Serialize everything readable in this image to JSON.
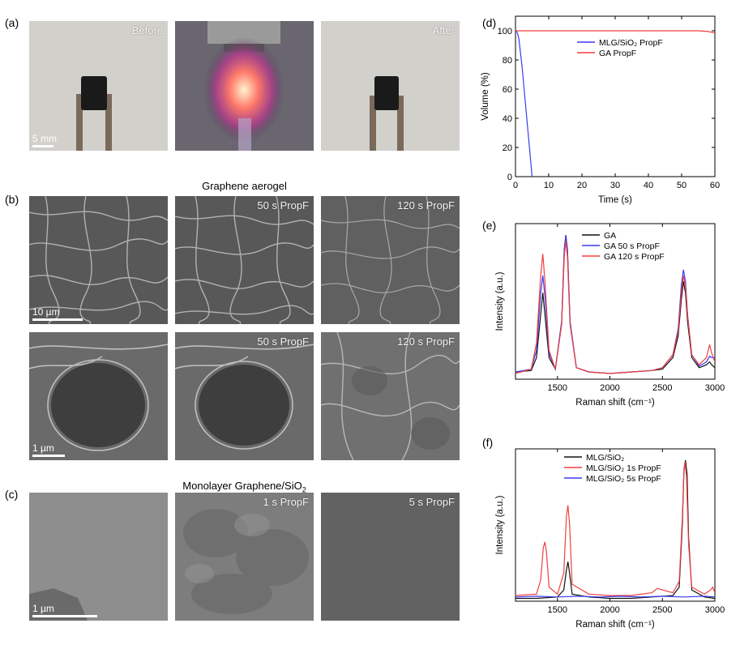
{
  "panels": {
    "a": {
      "label": "(a)",
      "tiles": [
        {
          "overlay": "Before",
          "scale_label": "5 mm"
        },
        {
          "overlay": ""
        },
        {
          "overlay": "After"
        }
      ]
    },
    "b": {
      "label": "(b)",
      "title": "Graphene aerogel",
      "row1": [
        {
          "overlay": "",
          "scale_label": "10 µm"
        },
        {
          "overlay": "50 s PropF"
        },
        {
          "overlay": "120 s PropF"
        }
      ],
      "row2": [
        {
          "overlay": "",
          "scale_label": "1 µm"
        },
        {
          "overlay": "50 s PropF"
        },
        {
          "overlay": "120 s PropF"
        }
      ]
    },
    "c": {
      "label": "(c)",
      "title_prefix": "Monolayer Graphene/SiO",
      "title_sub": "2",
      "tiles": [
        {
          "overlay": "",
          "scale_label": "1 µm"
        },
        {
          "overlay": "1 s PropF"
        },
        {
          "overlay": "5 s PropF"
        }
      ]
    },
    "d": {
      "label": "(d)"
    },
    "e": {
      "label": "(e)"
    },
    "f": {
      "label": "(f)"
    }
  },
  "chart_data": [
    {
      "panel": "(d)",
      "type": "line",
      "xlabel": "Time (s)",
      "ylabel": "Volume (%)",
      "xlim": [
        0,
        60
      ],
      "ylim": [
        0,
        110
      ],
      "xticks": [
        0,
        10,
        20,
        30,
        40,
        50,
        60
      ],
      "yticks": [
        0,
        20,
        40,
        60,
        80,
        100
      ],
      "legend_position": "top-right",
      "series": [
        {
          "name": "MLG/SiO₂ PropF",
          "color": "#3a3af0",
          "x": [
            0,
            0.5,
            1,
            2,
            3,
            4,
            5
          ],
          "y": [
            100,
            99,
            95,
            75,
            50,
            25,
            0
          ]
        },
        {
          "name": "GA PropF",
          "color": "#f04040",
          "x": [
            0,
            10,
            20,
            30,
            40,
            50,
            55,
            58,
            60
          ],
          "y": [
            100,
            100,
            100,
            100,
            100,
            100,
            100,
            99.5,
            98.5
          ]
        }
      ]
    },
    {
      "panel": "(e)",
      "type": "line",
      "xlabel": "Raman shift (cm⁻¹)",
      "ylabel": "Intensity (a.u.)",
      "xlim": [
        1100,
        3000
      ],
      "xticks": [
        1500,
        2000,
        2500,
        3000
      ],
      "legend_position": "top-right",
      "series": [
        {
          "name": "GA",
          "color": "#111111",
          "x": [
            1100,
            1250,
            1300,
            1340,
            1360,
            1380,
            1420,
            1480,
            1540,
            1565,
            1580,
            1595,
            1620,
            1680,
            1800,
            2000,
            2200,
            2400,
            2500,
            2600,
            2650,
            2680,
            2700,
            2720,
            2740,
            2780,
            2850,
            2920,
            2950,
            2970,
            3000
          ],
          "y": [
            0.05,
            0.06,
            0.15,
            0.45,
            0.6,
            0.45,
            0.15,
            0.07,
            0.4,
            0.9,
            1.0,
            0.9,
            0.4,
            0.08,
            0.05,
            0.04,
            0.05,
            0.06,
            0.07,
            0.15,
            0.3,
            0.55,
            0.68,
            0.6,
            0.4,
            0.15,
            0.08,
            0.1,
            0.12,
            0.1,
            0.08
          ]
        },
        {
          "name": "GA 50 s PropF",
          "color": "#3a3af0",
          "x": [
            1100,
            1250,
            1300,
            1340,
            1360,
            1380,
            1420,
            1480,
            1540,
            1565,
            1580,
            1595,
            1620,
            1680,
            1800,
            2000,
            2200,
            2400,
            2500,
            2600,
            2650,
            2680,
            2700,
            2720,
            2740,
            2780,
            2850,
            2920,
            2950,
            2970,
            3000
          ],
          "y": [
            0.05,
            0.07,
            0.2,
            0.6,
            0.72,
            0.58,
            0.18,
            0.07,
            0.4,
            0.9,
            1.0,
            0.9,
            0.4,
            0.08,
            0.05,
            0.04,
            0.05,
            0.06,
            0.08,
            0.17,
            0.35,
            0.65,
            0.76,
            0.68,
            0.45,
            0.17,
            0.09,
            0.12,
            0.16,
            0.15,
            0.15
          ]
        },
        {
          "name": "GA 120 s PropF",
          "color": "#f04040",
          "x": [
            1100,
            1250,
            1300,
            1340,
            1360,
            1380,
            1420,
            1480,
            1540,
            1565,
            1580,
            1595,
            1620,
            1680,
            1800,
            2000,
            2200,
            2400,
            2500,
            2600,
            2650,
            2680,
            2700,
            2720,
            2740,
            2780,
            2850,
            2920,
            2950,
            2970,
            3000
          ],
          "y": [
            0.04,
            0.07,
            0.25,
            0.72,
            0.87,
            0.68,
            0.2,
            0.07,
            0.38,
            0.85,
            0.96,
            0.85,
            0.38,
            0.08,
            0.05,
            0.04,
            0.05,
            0.06,
            0.08,
            0.17,
            0.33,
            0.6,
            0.72,
            0.65,
            0.44,
            0.17,
            0.1,
            0.15,
            0.24,
            0.18,
            0.12
          ]
        }
      ]
    },
    {
      "panel": "(f)",
      "type": "line",
      "xlabel": "Raman shift (cm⁻¹)",
      "ylabel": "Intensity (a.u.)",
      "xlim": [
        1100,
        3000
      ],
      "xticks": [
        1500,
        2000,
        2500,
        3000
      ],
      "legend_position": "top-left",
      "series": [
        {
          "name": "MLG/SiO₂",
          "color": "#111111",
          "x": [
            1100,
            1300,
            1500,
            1560,
            1585,
            1600,
            1615,
            1640,
            1800,
            2000,
            2200,
            2400,
            2600,
            2660,
            2690,
            2705,
            2720,
            2735,
            2750,
            2780,
            2900,
            3000
          ],
          "y": [
            0.02,
            0.02,
            0.03,
            0.08,
            0.22,
            0.28,
            0.2,
            0.05,
            0.03,
            0.02,
            0.02,
            0.03,
            0.04,
            0.1,
            0.55,
            0.92,
            1.0,
            0.9,
            0.45,
            0.08,
            0.03,
            0.02
          ]
        },
        {
          "name": "MLG/SiO₂ 1s PropF",
          "color": "#f04040",
          "x": [
            1100,
            1300,
            1340,
            1365,
            1380,
            1395,
            1420,
            1500,
            1560,
            1585,
            1600,
            1615,
            1640,
            1800,
            2000,
            2200,
            2400,
            2450,
            2600,
            2660,
            2690,
            2705,
            2715,
            2730,
            2750,
            2780,
            2900,
            2960,
            2980,
            3000
          ],
          "y": [
            0.04,
            0.05,
            0.15,
            0.38,
            0.42,
            0.35,
            0.1,
            0.05,
            0.2,
            0.6,
            0.68,
            0.55,
            0.12,
            0.05,
            0.04,
            0.04,
            0.06,
            0.09,
            0.06,
            0.14,
            0.6,
            0.93,
            0.99,
            0.88,
            0.4,
            0.1,
            0.05,
            0.08,
            0.1,
            0.06
          ]
        },
        {
          "name": "MLG/SiO₂ 5s PropF",
          "color": "#3a3af0",
          "x": [
            1100,
            1300,
            1500,
            1700,
            1900,
            2100,
            2300,
            2500,
            2700,
            2900,
            3000
          ],
          "y": [
            0.03,
            0.035,
            0.03,
            0.035,
            0.03,
            0.035,
            0.03,
            0.035,
            0.03,
            0.035,
            0.03
          ]
        }
      ]
    }
  ]
}
